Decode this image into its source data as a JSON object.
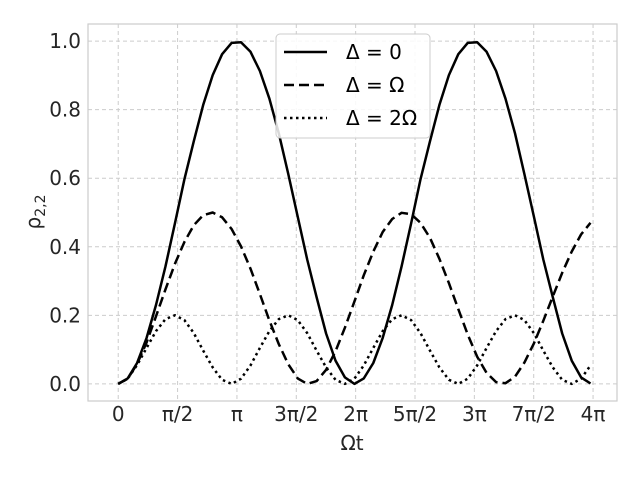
{
  "chart_data": {
    "type": "line",
    "xlabel": "Ωt",
    "ylabel": "ρ2,2",
    "xlim": [
      -0.8,
      13.2
    ],
    "ylim": [
      -0.05,
      1.05
    ],
    "grid": true,
    "legend_position": "top-center",
    "x_ticks": [
      {
        "value": 0,
        "label": "0"
      },
      {
        "value": 1.5708,
        "label": "π/2"
      },
      {
        "value": 3.1416,
        "label": "π"
      },
      {
        "value": 4.7124,
        "label": "3π/2"
      },
      {
        "value": 6.2832,
        "label": "2π"
      },
      {
        "value": 7.854,
        "label": "5π/2"
      },
      {
        "value": 9.4248,
        "label": "3π"
      },
      {
        "value": 10.9956,
        "label": "7π/2"
      },
      {
        "value": 12.5664,
        "label": "4π"
      }
    ],
    "y_ticks": [
      {
        "value": 0.0,
        "label": "0.0"
      },
      {
        "value": 0.2,
        "label": "0.2"
      },
      {
        "value": 0.4,
        "label": "0.4"
      },
      {
        "value": 0.6,
        "label": "0.6"
      },
      {
        "value": 0.8,
        "label": "0.8"
      },
      {
        "value": 1.0,
        "label": "1.0"
      }
    ],
    "x": [
      0,
      0.25,
      0.5,
      0.75,
      1.0,
      1.25,
      1.5,
      1.75,
      2.0,
      2.25,
      2.5,
      2.75,
      3.0,
      3.25,
      3.5,
      3.75,
      4.0,
      4.25,
      4.5,
      4.75,
      5.0,
      5.25,
      5.5,
      5.75,
      6.0,
      6.25,
      6.5,
      6.75,
      7.0,
      7.25,
      7.5,
      7.75,
      8.0,
      8.25,
      8.5,
      8.75,
      9.0,
      9.25,
      9.5,
      9.75,
      10.0,
      10.25,
      10.5,
      10.75,
      11.0,
      11.25,
      11.5,
      11.75,
      12.0,
      12.25,
      12.5
    ],
    "series": [
      {
        "name": "Δ = 0",
        "style": "solid",
        "color": "#000000",
        "values": [
          0,
          0.016,
          0.061,
          0.134,
          0.23,
          0.343,
          0.468,
          0.597,
          0.708,
          0.814,
          0.901,
          0.962,
          0.995,
          0.997,
          0.969,
          0.913,
          0.832,
          0.731,
          0.612,
          0.488,
          0.363,
          0.253,
          0.147,
          0.068,
          0.019,
          0.0,
          0.016,
          0.061,
          0.134,
          0.23,
          0.343,
          0.468,
          0.597,
          0.708,
          0.814,
          0.901,
          0.962,
          0.995,
          0.997,
          0.969,
          0.913,
          0.832,
          0.731,
          0.612,
          0.488,
          0.363,
          0.253,
          0.147,
          0.068,
          0.019,
          0.001
        ]
      },
      {
        "name": "Δ = Ω",
        "style": "dashed",
        "color": "#000000",
        "values": [
          0,
          0.015,
          0.058,
          0.121,
          0.197,
          0.276,
          0.35,
          0.414,
          0.463,
          0.492,
          0.5,
          0.486,
          0.452,
          0.401,
          0.336,
          0.262,
          0.185,
          0.116,
          0.057,
          0.016,
          0.0,
          0.008,
          0.041,
          0.095,
          0.164,
          0.24,
          0.317,
          0.386,
          0.443,
          0.481,
          0.499,
          0.495,
          0.47,
          0.426,
          0.365,
          0.294,
          0.218,
          0.144,
          0.079,
          0.032,
          0.005,
          0.002,
          0.021,
          0.062,
          0.118,
          0.184,
          0.255,
          0.324,
          0.386,
          0.436,
          0.47
        ]
      },
      {
        "name": "Δ = 2Ω",
        "style": "dotted",
        "color": "#000000",
        "values": [
          0,
          0.015,
          0.055,
          0.105,
          0.154,
          0.189,
          0.2,
          0.186,
          0.148,
          0.097,
          0.048,
          0.012,
          0.0,
          0.015,
          0.054,
          0.105,
          0.154,
          0.189,
          0.2,
          0.186,
          0.148,
          0.097,
          0.048,
          0.012,
          0.0,
          0.015,
          0.054,
          0.105,
          0.154,
          0.189,
          0.2,
          0.186,
          0.148,
          0.097,
          0.048,
          0.012,
          0.0,
          0.015,
          0.054,
          0.105,
          0.154,
          0.189,
          0.2,
          0.186,
          0.148,
          0.097,
          0.048,
          0.012,
          0.0,
          0.015,
          0.054
        ]
      }
    ]
  }
}
